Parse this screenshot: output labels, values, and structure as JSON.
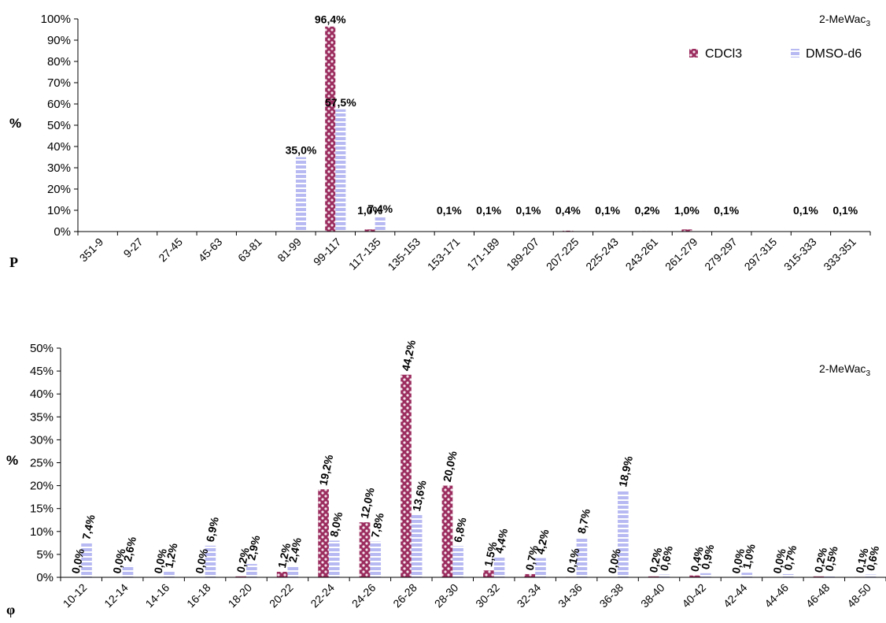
{
  "colors": {
    "cdcl3_fill": "#9b2c5e",
    "cdcl3_dot": "#f3e4ec",
    "dmso_fill": "#b7b9f2",
    "dmso_stripe": "#ffffff",
    "axis": "#000000"
  },
  "chart_data": [
    {
      "type": "bar",
      "title": "2-MeWac₃",
      "xlabel": "P",
      "ylabel": "%",
      "ylim": [
        0,
        100
      ],
      "yticks": [
        "0%",
        "10%",
        "20%",
        "30%",
        "40%",
        "50%",
        "60%",
        "70%",
        "80%",
        "90%",
        "100%"
      ],
      "legend_position": "top-right",
      "categories": [
        "351-9",
        "9-27",
        "27-45",
        "45-63",
        "63-81",
        "81-99",
        "99-117",
        "117-135",
        "135-153",
        "153-171",
        "171-189",
        "189-207",
        "207-225",
        "225-243",
        "243-261",
        "261-279",
        "279-297",
        "297-315",
        "315-333",
        "333-351"
      ],
      "series": [
        {
          "name": "CDCl3",
          "values": [
            0,
            0,
            0,
            0,
            0,
            0,
            96.4,
            1.0,
            0,
            0.1,
            0.1,
            0.1,
            0.4,
            0.1,
            0.2,
            1.0,
            0.1,
            0,
            0.1,
            0.1
          ]
        },
        {
          "name": "DMSO-d6",
          "values": [
            0,
            0,
            0,
            0,
            0,
            35.0,
            57.5,
            7.4,
            0,
            0,
            0,
            0,
            0,
            0,
            0,
            0,
            0,
            0,
            0,
            0
          ]
        }
      ],
      "data_labels": [
        {
          "category": "99-117",
          "series": "CDCl3",
          "text": "96,4%"
        },
        {
          "category": "99-117",
          "series": "DMSO-d6",
          "text": "57,5%"
        },
        {
          "category": "81-99",
          "series": "DMSO-d6",
          "text": "35,0%"
        },
        {
          "category": "117-135",
          "series": "CDCl3",
          "text": "1,0%"
        },
        {
          "category": "117-135",
          "series": "DMSO-d6",
          "text": "7,4%"
        },
        {
          "category": "153-171",
          "series": "CDCl3",
          "text": "0,1%"
        },
        {
          "category": "171-189",
          "series": "CDCl3",
          "text": "0,1%"
        },
        {
          "category": "189-207",
          "series": "CDCl3",
          "text": "0,1%"
        },
        {
          "category": "207-225",
          "series": "CDCl3",
          "text": "0,4%"
        },
        {
          "category": "225-243",
          "series": "CDCl3",
          "text": "0,1%"
        },
        {
          "category": "243-261",
          "series": "CDCl3",
          "text": "0,2%"
        },
        {
          "category": "261-279",
          "series": "CDCl3",
          "text": "1,0%"
        },
        {
          "category": "279-297",
          "series": "CDCl3",
          "text": "0,1%"
        },
        {
          "category": "315-333",
          "series": "CDCl3",
          "text": "0,1%"
        },
        {
          "category": "333-351",
          "series": "CDCl3",
          "text": "0,1%"
        }
      ]
    },
    {
      "type": "bar",
      "title": "2-MeWac₃",
      "xlabel": "φ",
      "ylabel": "%",
      "ylim": [
        0,
        50
      ],
      "yticks": [
        "0%",
        "5%",
        "10%",
        "15%",
        "20%",
        "25%",
        "30%",
        "35%",
        "40%",
        "45%",
        "50%"
      ],
      "categories": [
        "10-12",
        "12-14",
        "14-16",
        "16-18",
        "18-20",
        "20-22",
        "22-24",
        "24-26",
        "26-28",
        "28-30",
        "30-32",
        "32-34",
        "34-36",
        "36-38",
        "38-40",
        "40-42",
        "42-44",
        "44-46",
        "46-48",
        "48-50"
      ],
      "series": [
        {
          "name": "CDCl3",
          "values": [
            0.0,
            0.0,
            0.0,
            0.0,
            0.2,
            1.2,
            19.2,
            12.0,
            44.2,
            20.0,
            1.5,
            0.7,
            0.1,
            0.0,
            0.2,
            0.4,
            0.0,
            0.0,
            0.2,
            0.1
          ]
        },
        {
          "name": "DMSO-d6",
          "values": [
            7.4,
            2.6,
            1.2,
            6.9,
            2.9,
            2.4,
            8.0,
            7.8,
            13.6,
            6.8,
            4.4,
            4.2,
            8.7,
            18.9,
            0.6,
            0.9,
            1.0,
            0.7,
            0.5,
            0.6
          ]
        }
      ],
      "data_labels": {
        "CDCl3": [
          "0,0%",
          "0,0%",
          "0,0%",
          "0,0%",
          "0,2%",
          "1,2%",
          "19,2%",
          "12,0%",
          "44,2%",
          "20,0%",
          "1,5%",
          "0,7%",
          "0,1%",
          "0,0%",
          "0,2%",
          "0,4%",
          "0,0%",
          "0,0%",
          "0,2%",
          "0,1%"
        ],
        "DMSO-d6": [
          "7,4%",
          "2,6%",
          "1,2%",
          "6,9%",
          "2,9%",
          "2,4%",
          "8,0%",
          "7,8%",
          "13,6%",
          "6,8%",
          "4,4%",
          "4,2%",
          "8,7%",
          "18,9%",
          "0,6%",
          "0,9%",
          "1,0%",
          "0,7%",
          "0,5%",
          "0,6%"
        ]
      }
    }
  ]
}
